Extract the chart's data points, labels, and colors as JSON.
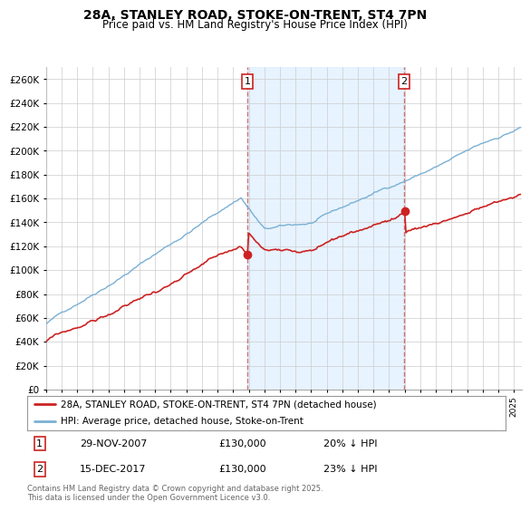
{
  "title": "28A, STANLEY ROAD, STOKE-ON-TRENT, ST4 7PN",
  "subtitle": "Price paid vs. HM Land Registry's House Price Index (HPI)",
  "ylim": [
    0,
    270000
  ],
  "yticks": [
    0,
    20000,
    40000,
    60000,
    80000,
    100000,
    120000,
    140000,
    160000,
    180000,
    200000,
    220000,
    240000,
    260000
  ],
  "hpi_color": "#7ab0d4",
  "price_color": "#cc2222",
  "vline_color": "#cc6666",
  "shade_color": "#ddeeff",
  "sale1_year": 2007.92,
  "sale2_year": 2017.96,
  "sale1_price": 130000,
  "sale2_price": 130000,
  "sale1_date": "29-NOV-2007",
  "sale1_price_str": "£130,000",
  "sale1_hpi": "20% ↓ HPI",
  "sale2_date": "15-DEC-2017",
  "sale2_price_str": "£130,000",
  "sale2_hpi": "23% ↓ HPI",
  "legend_label1": "28A, STANLEY ROAD, STOKE-ON-TRENT, ST4 7PN (detached house)",
  "legend_label2": "HPI: Average price, detached house, Stoke-on-Trent",
  "footer": "Contains HM Land Registry data © Crown copyright and database right 2025.\nThis data is licensed under the Open Government Licence v3.0.",
  "background_color": "#ffffff",
  "grid_color": "#cccccc",
  "title_fontsize": 10,
  "subtitle_fontsize": 8.5
}
